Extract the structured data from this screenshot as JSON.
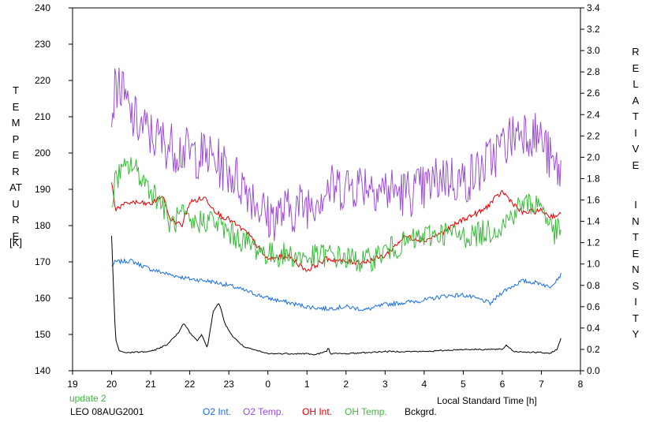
{
  "chart_data": {
    "type": "line",
    "xlabel": "Local Standard Time [h]",
    "ylabel_left": "TEMPERATURE",
    "ylabel_left_unit": "[K]",
    "ylabel_right": "RELATIVE INTENSITY",
    "xlim": [
      19,
      32
    ],
    "x_tick_values": [
      19,
      20,
      21,
      22,
      23,
      24,
      25,
      26,
      27,
      28,
      29,
      30,
      31,
      32
    ],
    "x_tick_labels": [
      "19",
      "20",
      "21",
      "22",
      "23",
      "0",
      "1",
      "2",
      "3",
      "4",
      "5",
      "6",
      "7",
      "8"
    ],
    "ylim_left": [
      140,
      240
    ],
    "y_left_ticks": [
      140,
      150,
      160,
      170,
      180,
      190,
      200,
      210,
      220,
      230,
      240
    ],
    "ylim_right": [
      0.0,
      3.4
    ],
    "y_right_ticks": [
      "0.0",
      "0.2",
      "0.4",
      "0.6",
      "0.8",
      "1.0",
      "1.2",
      "1.4",
      "1.6",
      "1.8",
      "2.0",
      "2.2",
      "2.4",
      "2.6",
      "2.8",
      "3.0",
      "3.2",
      "3.4"
    ],
    "grid": false,
    "status_text": "update 2",
    "station_date": "LEO 08AUG2001",
    "series": [
      {
        "name": "O2 Int.",
        "color": "#1a6fd6",
        "axis": "right",
        "noise": 0.02,
        "x": [
          20.0,
          20.1,
          20.5,
          21.0,
          21.5,
          22.0,
          22.5,
          23.0,
          23.5,
          24.0,
          24.5,
          25.0,
          25.5,
          26.0,
          26.5,
          27.0,
          27.5,
          28.0,
          28.5,
          29.0,
          29.5,
          29.7,
          30.0,
          30.5,
          31.0,
          31.2,
          31.5
        ],
        "y": [
          0.98,
          1.02,
          1.03,
          0.95,
          0.9,
          0.86,
          0.84,
          0.8,
          0.74,
          0.68,
          0.64,
          0.6,
          0.58,
          0.6,
          0.57,
          0.62,
          0.64,
          0.66,
          0.7,
          0.71,
          0.66,
          0.63,
          0.74,
          0.84,
          0.82,
          0.78,
          0.9
        ]
      },
      {
        "name": "O2 Temp.",
        "color": "#9b4fcf",
        "axis": "left",
        "noise": 7,
        "x": [
          20.0,
          20.15,
          20.5,
          21.0,
          21.5,
          22.0,
          22.5,
          23.0,
          23.5,
          24.0,
          24.5,
          25.0,
          25.5,
          26.0,
          26.5,
          27.0,
          27.5,
          28.0,
          28.5,
          29.0,
          29.5,
          30.0,
          30.5,
          31.0,
          31.3,
          31.5
        ],
        "y": [
          212,
          220,
          210,
          205,
          202,
          200,
          199,
          195,
          190,
          182,
          184,
          186,
          190,
          191,
          192,
          190,
          189,
          190,
          194,
          192,
          196,
          202,
          207,
          204,
          196,
          195
        ]
      },
      {
        "name": "OH Int.",
        "color": "#dd0000",
        "axis": "right",
        "noise": 0.025,
        "x": [
          20.0,
          20.1,
          20.5,
          21.0,
          21.3,
          21.5,
          21.8,
          22.0,
          22.4,
          22.6,
          22.8,
          23.0,
          23.5,
          24.0,
          24.5,
          25.0,
          25.5,
          26.0,
          26.5,
          27.0,
          27.5,
          28.0,
          28.5,
          29.0,
          29.5,
          30.0,
          30.5,
          31.0,
          31.2,
          31.5
        ],
        "y": [
          1.76,
          1.52,
          1.58,
          1.56,
          1.64,
          1.42,
          1.36,
          1.58,
          1.62,
          1.52,
          1.45,
          1.42,
          1.28,
          1.04,
          1.08,
          0.94,
          1.05,
          1.02,
          1.02,
          1.08,
          1.26,
          1.22,
          1.3,
          1.42,
          1.5,
          1.68,
          1.48,
          1.5,
          1.45,
          1.46
        ]
      },
      {
        "name": "OH Temp.",
        "color": "#3cb83c",
        "axis": "left",
        "noise": 3.5,
        "x": [
          20.0,
          20.1,
          20.5,
          21.0,
          21.3,
          21.5,
          21.8,
          22.0,
          22.5,
          23.0,
          23.5,
          24.0,
          24.5,
          25.0,
          25.5,
          26.0,
          26.5,
          27.0,
          27.5,
          28.0,
          28.5,
          29.0,
          29.5,
          30.0,
          30.5,
          31.0,
          31.3,
          31.5
        ],
        "y": [
          186,
          193,
          197,
          190,
          186,
          180,
          183,
          180,
          182,
          178,
          175,
          172,
          172,
          171,
          172,
          171,
          170,
          173,
          175,
          177,
          178,
          177,
          178,
          180,
          186,
          186,
          178,
          179
        ]
      },
      {
        "name": "Bckgrd.",
        "color": "#000000",
        "axis": "right",
        "noise": 0.006,
        "x": [
          20.0,
          20.05,
          20.1,
          20.2,
          20.4,
          21.0,
          21.4,
          21.7,
          21.85,
          22.0,
          22.2,
          22.3,
          22.45,
          22.6,
          22.75,
          22.9,
          23.1,
          23.4,
          23.8,
          24.0,
          24.5,
          25.0,
          25.2,
          25.5,
          25.55,
          25.6,
          26.0,
          27.0,
          28.0,
          29.0,
          30.0,
          30.1,
          30.3,
          31.0,
          31.2,
          31.4,
          31.5
        ],
        "y": [
          1.26,
          0.75,
          0.3,
          0.18,
          0.17,
          0.18,
          0.24,
          0.35,
          0.45,
          0.36,
          0.28,
          0.34,
          0.22,
          0.55,
          0.64,
          0.44,
          0.32,
          0.22,
          0.18,
          0.16,
          0.16,
          0.16,
          0.15,
          0.18,
          0.22,
          0.16,
          0.16,
          0.18,
          0.18,
          0.2,
          0.2,
          0.24,
          0.18,
          0.17,
          0.16,
          0.2,
          0.3
        ]
      }
    ]
  }
}
